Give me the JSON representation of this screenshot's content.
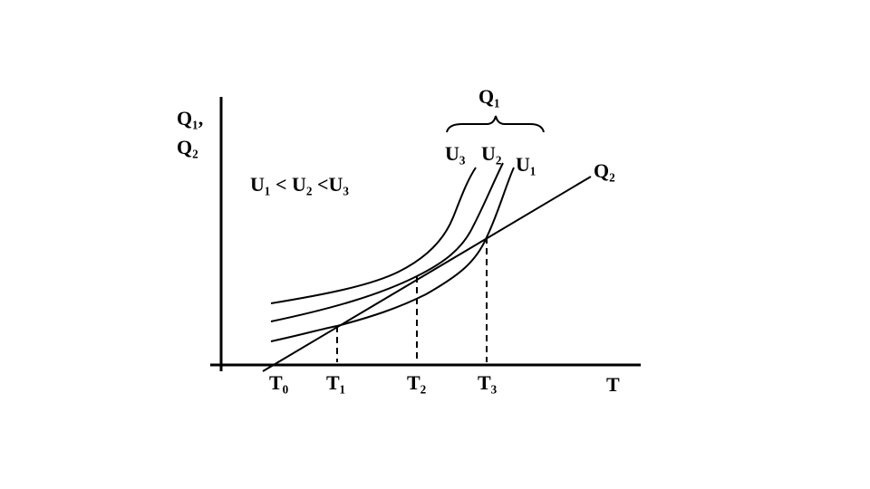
{
  "axes": {
    "y_label": [
      "Q₁,",
      "Q₂"
    ],
    "x_label": "T"
  },
  "condition": "U₁ < U₂ <U₃",
  "brace_label": "Q₁",
  "curves": [
    {
      "label": "U₃"
    },
    {
      "label": "U₂"
    },
    {
      "label": "U₁"
    }
  ],
  "line_label": "Q₂",
  "temperatures": [
    "T₀",
    "T₁",
    "T₂",
    "T₃"
  ]
}
